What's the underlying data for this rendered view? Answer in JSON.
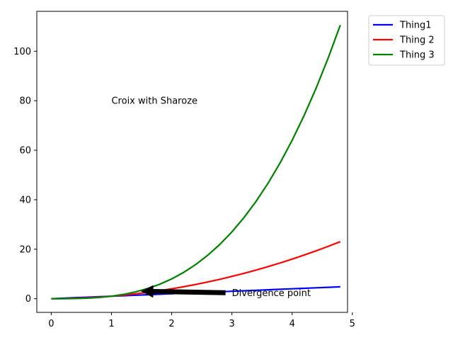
{
  "chart_data": {
    "type": "line",
    "title": "",
    "xlabel": "",
    "ylabel": "",
    "xlim": [
      -0.24,
      4.92
    ],
    "ylim": [
      -5.53,
      116.13
    ],
    "xticks": [
      0,
      1,
      2,
      3,
      4,
      5
    ],
    "yticks": [
      0,
      20,
      40,
      60,
      80,
      100
    ],
    "x": [
      0.0,
      0.2,
      0.4,
      0.6,
      0.8,
      1.0,
      1.2,
      1.4,
      1.6,
      1.8,
      2.0,
      2.2,
      2.4,
      2.6,
      2.8,
      3.0,
      3.2,
      3.4,
      3.6,
      3.8,
      4.0,
      4.2,
      4.4,
      4.6,
      4.8
    ],
    "series": [
      {
        "name": "Thing1",
        "color": "#0000ff",
        "values": [
          0.0,
          0.2,
          0.4,
          0.6,
          0.8,
          1.0,
          1.2,
          1.4,
          1.6,
          1.8,
          2.0,
          2.2,
          2.4,
          2.6,
          2.8,
          3.0,
          3.2,
          3.4,
          3.6,
          3.8,
          4.0,
          4.2,
          4.4,
          4.6,
          4.8
        ]
      },
      {
        "name": "Thing 2",
        "color": "#ff0000",
        "values": [
          0.0,
          0.04,
          0.16,
          0.36,
          0.64,
          1.0,
          1.44,
          1.96,
          2.56,
          3.24,
          4.0,
          4.84,
          5.76,
          6.76,
          7.84,
          9.0,
          10.24,
          11.56,
          12.96,
          14.44,
          16.0,
          17.64,
          19.36,
          21.16,
          23.04
        ]
      },
      {
        "name": "Thing 3",
        "color": "#008000",
        "values": [
          0.0,
          0.008,
          0.064,
          0.216,
          0.512,
          1.0,
          1.728,
          2.744,
          4.096,
          5.832,
          8.0,
          10.648,
          13.824,
          17.576,
          21.952,
          27.0,
          32.768,
          39.304,
          46.656,
          54.872,
          64.0,
          74.088,
          85.184,
          97.336,
          110.592
        ]
      }
    ],
    "grid": false,
    "legend_position": "outside upper right",
    "annotations": [
      {
        "text": "Croix with Sharoze",
        "x": 1.0,
        "y": 80.0,
        "arrow": false
      },
      {
        "text": "Divergence point",
        "x": 3.0,
        "y": 2.4,
        "arrow": true,
        "arrow_target_x": 1.5,
        "arrow_target_y": 3.0,
        "arrow_color": "#000000"
      }
    ]
  }
}
